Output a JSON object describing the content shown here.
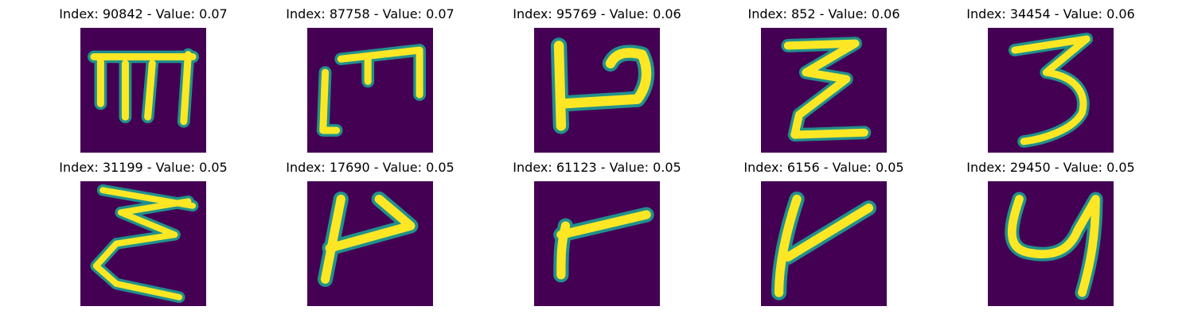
{
  "figure": {
    "background_color": "#440154",
    "stroke_color": "#FDE725",
    "edge_color": "#21918C",
    "panels": [
      {
        "title": "Index: 90842 - Value: 0.07",
        "index": 90842,
        "value": 0.07,
        "glyph": "m-like"
      },
      {
        "title": "Index: 87758 - Value: 0.07",
        "index": 87758,
        "value": 0.07,
        "glyph": "m-like-narrow"
      },
      {
        "title": "Index: 95769 - Value: 0.06",
        "index": 95769,
        "value": 0.06,
        "glyph": "p-like"
      },
      {
        "title": "Index: 852 - Value: 0.06",
        "index": 852,
        "value": 0.06,
        "glyph": "zigzag"
      },
      {
        "title": "Index: 34454 - Value: 0.06",
        "index": 34454,
        "value": 0.06,
        "glyph": "three"
      },
      {
        "title": "Index: 31199 - Value: 0.05",
        "index": 31199,
        "value": 0.05,
        "glyph": "reversed-three"
      },
      {
        "title": "Index: 17690 - Value: 0.05",
        "index": 17690,
        "value": 0.05,
        "glyph": "flag"
      },
      {
        "title": "Index: 61123 - Value: 0.05",
        "index": 61123,
        "value": 0.05,
        "glyph": "r-like"
      },
      {
        "title": "Index: 6156 - Value: 0.05",
        "index": 6156,
        "value": 0.05,
        "glyph": "t-like"
      },
      {
        "title": "Index: 29450 - Value: 0.05",
        "index": 29450,
        "value": 0.05,
        "glyph": "y-like"
      }
    ]
  }
}
